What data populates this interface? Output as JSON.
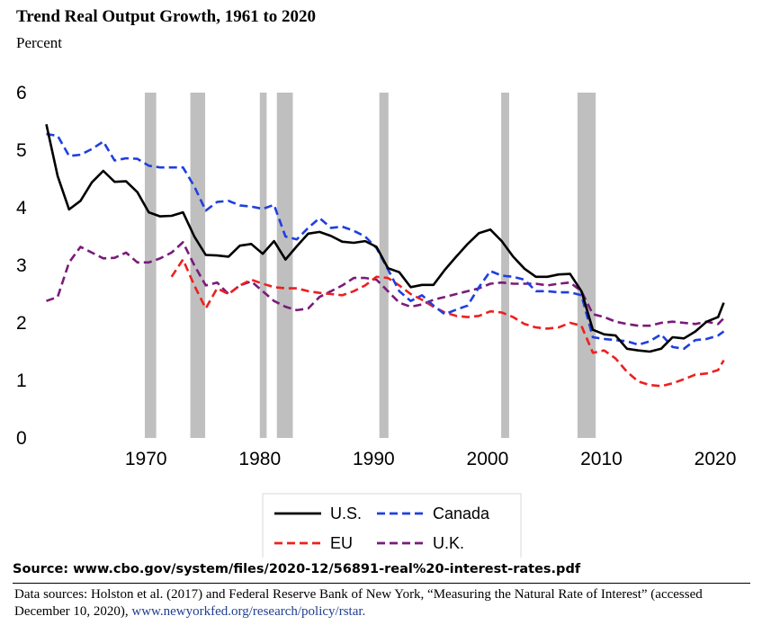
{
  "title": "Trend Real Output Growth, 1961 to 2020",
  "unit_label": "Percent",
  "source": "Source: www.cbo.gov/system/files/2020-12/56891-real%20-interest-rates.pdf",
  "notes": {
    "text": "Data sources: Holston et al. (2017) and Federal Reserve Bank of New York, “Measuring the Natural Rate of Interest” (accessed December 10, 2020), ",
    "link": "www.newyorkfed.org/research/policy/rstar."
  },
  "chart_data": {
    "type": "line",
    "xlim": [
      1960.5,
      2021.5
    ],
    "ylim": [
      0,
      6
    ],
    "yticks": [
      0,
      1,
      2,
      3,
      4,
      5,
      6
    ],
    "ytick_labels": [
      "0",
      "1",
      "2",
      "3",
      "4",
      "5",
      "6"
    ],
    "xticks": [
      1970,
      1980,
      1990,
      2000,
      2010,
      2020
    ],
    "xtick_labels": [
      "1970",
      "1980",
      "1990",
      "2000",
      "2010",
      "2020"
    ],
    "grid": false,
    "legend_position": "bottom",
    "recession_color": "#bfbfbf",
    "recessions": [
      [
        1969.9,
        1970.9
      ],
      [
        1973.9,
        1975.2
      ],
      [
        1980.0,
        1980.6
      ],
      [
        1981.5,
        1982.9
      ],
      [
        1990.5,
        1991.3
      ],
      [
        2001.2,
        2001.9
      ],
      [
        2007.9,
        2009.5
      ]
    ],
    "series": [
      {
        "name": "U.S.",
        "color": "#000000",
        "dash": "solid",
        "points": [
          [
            1961.25,
            5.45
          ],
          [
            1962.25,
            4.55
          ],
          [
            1963.25,
            3.97
          ],
          [
            1964.25,
            4.12
          ],
          [
            1965.25,
            4.44
          ],
          [
            1966.25,
            4.64
          ],
          [
            1967.25,
            4.45
          ],
          [
            1968.25,
            4.46
          ],
          [
            1969.25,
            4.27
          ],
          [
            1970.25,
            3.92
          ],
          [
            1971.25,
            3.85
          ],
          [
            1972.25,
            3.86
          ],
          [
            1973.25,
            3.92
          ],
          [
            1974.25,
            3.5
          ],
          [
            1975.25,
            3.18
          ],
          [
            1976.25,
            3.17
          ],
          [
            1977.25,
            3.15
          ],
          [
            1978.25,
            3.34
          ],
          [
            1979.25,
            3.37
          ],
          [
            1980.25,
            3.2
          ],
          [
            1981.25,
            3.42
          ],
          [
            1982.25,
            3.1
          ],
          [
            1983.25,
            3.33
          ],
          [
            1984.25,
            3.55
          ],
          [
            1985.25,
            3.58
          ],
          [
            1986.25,
            3.51
          ],
          [
            1987.25,
            3.41
          ],
          [
            1988.25,
            3.39
          ],
          [
            1989.25,
            3.42
          ],
          [
            1990.25,
            3.32
          ],
          [
            1991.25,
            2.95
          ],
          [
            1992.25,
            2.88
          ],
          [
            1993.25,
            2.62
          ],
          [
            1994.25,
            2.66
          ],
          [
            1995.25,
            2.66
          ],
          [
            1996.25,
            2.92
          ],
          [
            1997.25,
            3.15
          ],
          [
            1998.25,
            3.37
          ],
          [
            1999.25,
            3.56
          ],
          [
            2000.25,
            3.62
          ],
          [
            2001.25,
            3.42
          ],
          [
            2002.25,
            3.15
          ],
          [
            2003.25,
            2.94
          ],
          [
            2004.25,
            2.8
          ],
          [
            2005.25,
            2.8
          ],
          [
            2006.25,
            2.84
          ],
          [
            2007.25,
            2.85
          ],
          [
            2008.25,
            2.55
          ],
          [
            2009.25,
            1.88
          ],
          [
            2010.25,
            1.8
          ],
          [
            2011.25,
            1.78
          ],
          [
            2012.25,
            1.55
          ],
          [
            2013.25,
            1.52
          ],
          [
            2014.25,
            1.5
          ],
          [
            2015.25,
            1.55
          ],
          [
            2016.25,
            1.75
          ],
          [
            2017.25,
            1.73
          ],
          [
            2018.25,
            1.85
          ],
          [
            2019.25,
            2.02
          ],
          [
            2020.25,
            2.1
          ],
          [
            2020.75,
            2.35
          ]
        ]
      },
      {
        "name": "Canada",
        "color": "#1f3fe0",
        "dash": "dashed",
        "points": [
          [
            1961.25,
            5.28
          ],
          [
            1962.25,
            5.25
          ],
          [
            1963.25,
            4.9
          ],
          [
            1964.25,
            4.92
          ],
          [
            1965.25,
            5.02
          ],
          [
            1966.25,
            5.15
          ],
          [
            1967.25,
            4.82
          ],
          [
            1968.25,
            4.86
          ],
          [
            1969.25,
            4.85
          ],
          [
            1970.25,
            4.73
          ],
          [
            1971.25,
            4.7
          ],
          [
            1972.25,
            4.7
          ],
          [
            1973.25,
            4.7
          ],
          [
            1974.25,
            4.37
          ],
          [
            1975.25,
            3.95
          ],
          [
            1976.25,
            4.1
          ],
          [
            1977.25,
            4.12
          ],
          [
            1978.25,
            4.04
          ],
          [
            1979.25,
            4.02
          ],
          [
            1980.25,
            3.98
          ],
          [
            1981.25,
            4.05
          ],
          [
            1982.25,
            3.5
          ],
          [
            1983.25,
            3.45
          ],
          [
            1984.25,
            3.65
          ],
          [
            1985.25,
            3.82
          ],
          [
            1986.25,
            3.65
          ],
          [
            1987.25,
            3.67
          ],
          [
            1988.25,
            3.6
          ],
          [
            1989.25,
            3.5
          ],
          [
            1990.25,
            3.3
          ],
          [
            1991.25,
            2.93
          ],
          [
            1992.25,
            2.55
          ],
          [
            1993.25,
            2.38
          ],
          [
            1994.25,
            2.48
          ],
          [
            1995.25,
            2.3
          ],
          [
            1996.25,
            2.15
          ],
          [
            1997.25,
            2.23
          ],
          [
            1998.25,
            2.3
          ],
          [
            1999.25,
            2.62
          ],
          [
            2000.25,
            2.9
          ],
          [
            2001.25,
            2.82
          ],
          [
            2002.25,
            2.8
          ],
          [
            2003.25,
            2.75
          ],
          [
            2004.25,
            2.55
          ],
          [
            2005.25,
            2.55
          ],
          [
            2006.25,
            2.53
          ],
          [
            2007.25,
            2.53
          ],
          [
            2008.25,
            2.48
          ],
          [
            2009.25,
            1.75
          ],
          [
            2010.25,
            1.72
          ],
          [
            2011.25,
            1.7
          ],
          [
            2012.25,
            1.68
          ],
          [
            2013.25,
            1.62
          ],
          [
            2014.25,
            1.68
          ],
          [
            2015.25,
            1.8
          ],
          [
            2016.25,
            1.58
          ],
          [
            2017.25,
            1.55
          ],
          [
            2018.25,
            1.7
          ],
          [
            2019.25,
            1.72
          ],
          [
            2020.25,
            1.78
          ],
          [
            2020.75,
            1.85
          ]
        ]
      },
      {
        "name": "EU",
        "color": "#ee1f1f",
        "dash": "dashed",
        "points": [
          [
            1972.25,
            2.8
          ],
          [
            1973.25,
            3.1
          ],
          [
            1974.25,
            2.65
          ],
          [
            1975.25,
            2.25
          ],
          [
            1976.25,
            2.6
          ],
          [
            1977.25,
            2.5
          ],
          [
            1978.25,
            2.65
          ],
          [
            1979.25,
            2.75
          ],
          [
            1980.25,
            2.68
          ],
          [
            1981.25,
            2.62
          ],
          [
            1982.25,
            2.6
          ],
          [
            1983.25,
            2.6
          ],
          [
            1984.25,
            2.55
          ],
          [
            1985.25,
            2.52
          ],
          [
            1986.25,
            2.5
          ],
          [
            1987.25,
            2.48
          ],
          [
            1988.25,
            2.55
          ],
          [
            1989.25,
            2.65
          ],
          [
            1990.25,
            2.8
          ],
          [
            1991.25,
            2.78
          ],
          [
            1992.25,
            2.65
          ],
          [
            1993.25,
            2.5
          ],
          [
            1994.25,
            2.4
          ],
          [
            1995.25,
            2.28
          ],
          [
            1996.25,
            2.18
          ],
          [
            1997.25,
            2.12
          ],
          [
            1998.25,
            2.1
          ],
          [
            1999.25,
            2.12
          ],
          [
            2000.25,
            2.2
          ],
          [
            2001.25,
            2.18
          ],
          [
            2002.25,
            2.1
          ],
          [
            2003.25,
            1.98
          ],
          [
            2004.25,
            1.92
          ],
          [
            2005.25,
            1.9
          ],
          [
            2006.25,
            1.92
          ],
          [
            2007.25,
            2.0
          ],
          [
            2008.25,
            1.95
          ],
          [
            2009.25,
            1.48
          ],
          [
            2010.25,
            1.52
          ],
          [
            2011.25,
            1.38
          ],
          [
            2012.25,
            1.15
          ],
          [
            2013.25,
            0.98
          ],
          [
            2014.25,
            0.92
          ],
          [
            2015.25,
            0.9
          ],
          [
            2016.25,
            0.95
          ],
          [
            2017.25,
            1.02
          ],
          [
            2018.25,
            1.1
          ],
          [
            2019.25,
            1.12
          ],
          [
            2020.25,
            1.18
          ],
          [
            2020.75,
            1.35
          ]
        ]
      },
      {
        "name": "U.K.",
        "color": "#7a1a7a",
        "dash": "dashed",
        "points": [
          [
            1961.25,
            2.38
          ],
          [
            1962.25,
            2.45
          ],
          [
            1963.25,
            3.05
          ],
          [
            1964.25,
            3.32
          ],
          [
            1965.25,
            3.22
          ],
          [
            1966.25,
            3.12
          ],
          [
            1967.25,
            3.13
          ],
          [
            1968.25,
            3.22
          ],
          [
            1969.25,
            3.05
          ],
          [
            1970.25,
            3.05
          ],
          [
            1971.25,
            3.12
          ],
          [
            1972.25,
            3.22
          ],
          [
            1973.25,
            3.4
          ],
          [
            1974.25,
            3.0
          ],
          [
            1975.25,
            2.65
          ],
          [
            1976.25,
            2.7
          ],
          [
            1977.25,
            2.5
          ],
          [
            1978.25,
            2.65
          ],
          [
            1979.25,
            2.72
          ],
          [
            1980.25,
            2.55
          ],
          [
            1981.25,
            2.38
          ],
          [
            1982.25,
            2.28
          ],
          [
            1983.25,
            2.22
          ],
          [
            1984.25,
            2.25
          ],
          [
            1985.25,
            2.45
          ],
          [
            1986.25,
            2.55
          ],
          [
            1987.25,
            2.65
          ],
          [
            1988.25,
            2.78
          ],
          [
            1989.25,
            2.78
          ],
          [
            1990.25,
            2.75
          ],
          [
            1991.25,
            2.55
          ],
          [
            1992.25,
            2.35
          ],
          [
            1993.25,
            2.28
          ],
          [
            1994.25,
            2.32
          ],
          [
            1995.25,
            2.4
          ],
          [
            1996.25,
            2.45
          ],
          [
            1997.25,
            2.5
          ],
          [
            1998.25,
            2.55
          ],
          [
            1999.25,
            2.6
          ],
          [
            2000.25,
            2.68
          ],
          [
            2001.25,
            2.7
          ],
          [
            2002.25,
            2.68
          ],
          [
            2003.25,
            2.68
          ],
          [
            2004.25,
            2.68
          ],
          [
            2005.25,
            2.65
          ],
          [
            2006.25,
            2.68
          ],
          [
            2007.25,
            2.7
          ],
          [
            2008.25,
            2.55
          ],
          [
            2009.25,
            2.15
          ],
          [
            2010.25,
            2.1
          ],
          [
            2011.25,
            2.02
          ],
          [
            2012.25,
            1.98
          ],
          [
            2013.25,
            1.95
          ],
          [
            2014.25,
            1.95
          ],
          [
            2015.25,
            2.0
          ],
          [
            2016.25,
            2.02
          ],
          [
            2017.25,
            2.0
          ],
          [
            2018.25,
            1.98
          ],
          [
            2019.25,
            2.02
          ],
          [
            2020.25,
            1.98
          ],
          [
            2020.75,
            2.08
          ]
        ]
      }
    ]
  }
}
